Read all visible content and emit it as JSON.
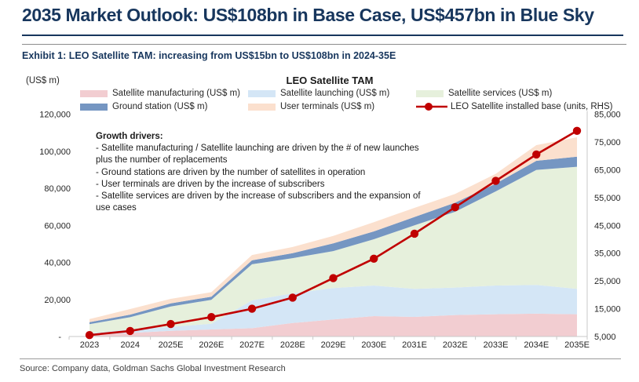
{
  "header": {
    "title": "2035 Market Outlook: US$108bn in Base Case, US$457bn in Blue Sky"
  },
  "exhibit": {
    "title": "Exhibit 1: LEO Satellite TAM: increasing from US$15bn to US$108bn in 2024-35E"
  },
  "growth_drivers": {
    "heading": "Growth drivers:",
    "lines": [
      "- Satellite manufacturing / Satellite launching are driven by the # of new launches plus the number of replacements",
      "- Ground stations are driven by the number of satellites in operation",
      "- User terminals are driven by the increase of subscribers",
      "- Satellite services are driven by the increase of subscribers and the expansion of use cases"
    ]
  },
  "source": {
    "text": "Source: Company data, Goldman Sachs Global Investment Research"
  },
  "colors": {
    "navy": "#17365d",
    "red_line": "#c00000",
    "axis_line": "#c9c9c9",
    "text": "#262626"
  },
  "chart_data": {
    "type": "area",
    "stacked": true,
    "title": "LEO Satellite TAM",
    "unit_label": "(US$ m)",
    "legend_position": "top",
    "grid": false,
    "categories": [
      "2023",
      "2024",
      "2025E",
      "2026E",
      "2027E",
      "2028E",
      "2029E",
      "2030E",
      "2031E",
      "2032E",
      "2033E",
      "2034E",
      "2035E"
    ],
    "series": [
      {
        "name": "Satellite manufacturing (US$ m)",
        "color": "#f2cdd1",
        "values": [
          700,
          1900,
          3100,
          3800,
          4500,
          7300,
          9200,
          11000,
          10600,
          11600,
          12000,
          12300,
          12000
        ]
      },
      {
        "name": "Satellite launching (US$ m)",
        "color": "#d4e6f6",
        "values": [
          1000,
          2000,
          2100,
          3100,
          15000,
          16000,
          16900,
          16500,
          15100,
          14800,
          15500,
          15500,
          13700
        ]
      },
      {
        "name": "Satellite services (US$ m)",
        "color": "#e6f0dc",
        "values": [
          5000,
          6500,
          11000,
          12900,
          19500,
          19000,
          20000,
          25000,
          34300,
          40900,
          50800,
          62100,
          65900
        ]
      },
      {
        "name": "Ground station  (US$ m)",
        "color": "#7596c2",
        "values": [
          1000,
          1400,
          1700,
          1700,
          2100,
          2700,
          4200,
          4200,
          4500,
          4900,
          4200,
          4900,
          5400
        ]
      },
      {
        "name": "User terminals  (US$ m)",
        "color": "#fbe0ce",
        "values": [
          1700,
          3000,
          2400,
          2400,
          2900,
          3300,
          4000,
          5000,
          4900,
          4700,
          5300,
          8500,
          10500
        ]
      }
    ],
    "stack_totals": [
      9400,
      14800,
      20300,
      23900,
      44000,
      48300,
      54300,
      61700,
      69400,
      76900,
      87800,
      103300,
      107500
    ],
    "line_series": {
      "name": "LEO Satellite installed base (units, RHS)",
      "color": "#c00000",
      "axis": "right",
      "values": [
        5500,
        7000,
        9500,
        12000,
        15000,
        19000,
        26000,
        33000,
        42000,
        51500,
        61000,
        70500,
        79000
      ]
    },
    "left_axis": {
      "min": 0,
      "max": 120000,
      "ticks": [
        "120,000",
        "100,000",
        "80,000",
        "60,000",
        "40,000",
        "20,000",
        "-"
      ]
    },
    "right_axis": {
      "min": 5000,
      "max": 85000,
      "ticks": [
        "85,000",
        "75,000",
        "65,000",
        "55,000",
        "45,000",
        "35,000",
        "25,000",
        "15,000",
        "5,000"
      ]
    }
  }
}
